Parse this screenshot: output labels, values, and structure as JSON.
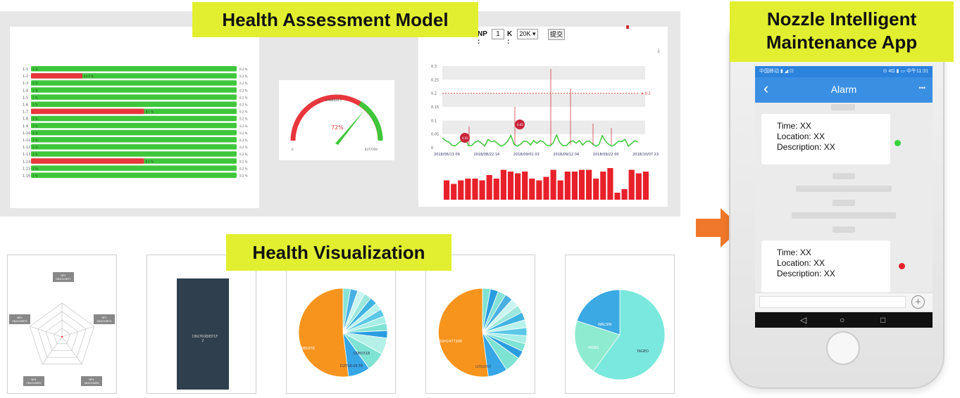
{
  "banners": {
    "assessment": "Health Assessment Model",
    "visualization": "Health Visualization",
    "app_line1": "Nozzle Intelligent",
    "app_line2": "Maintenance App"
  },
  "bar_panel": {
    "rows": [
      {
        "label": "1-1",
        "left": "1 %",
        "right": "0.2 %",
        "red": 0
      },
      {
        "label": "1-2",
        "left": "",
        "right": "0.2 %",
        "red": 0.25,
        "red_label": "23.5 %"
      },
      {
        "label": "1-3",
        "left": "1 %",
        "right": "0.2 %",
        "red": 0
      },
      {
        "label": "1-4",
        "left": "1 %",
        "right": "0.2 %",
        "red": 0
      },
      {
        "label": "1-5",
        "left": "1 %",
        "right": "0.2 %",
        "red": 0
      },
      {
        "label": "1-6",
        "left": "1 %",
        "right": "0.2 %",
        "red": 0
      },
      {
        "label": "1-7",
        "left": "",
        "right": "0.2 %",
        "red": 0.55,
        "red_label": "8.1 %"
      },
      {
        "label": "1-8",
        "left": "1 %",
        "right": "0.2 %",
        "red": 0
      },
      {
        "label": "1-9",
        "left": "1 %",
        "right": "0.2 %",
        "red": 0
      },
      {
        "label": "1-10",
        "left": "1 %",
        "right": "0.2 %",
        "red": 0
      },
      {
        "label": "1-11",
        "left": "1 %",
        "right": "0.2 %",
        "red": 0
      },
      {
        "label": "1-12",
        "left": "1 %",
        "right": "0.2 %",
        "red": 0
      },
      {
        "label": "1-13",
        "left": "1 %",
        "right": "0.2 %",
        "red": 0
      },
      {
        "label": "1-14",
        "left": "",
        "right": "0.2 %",
        "red": 0.55,
        "red_label": "8.1 %"
      },
      {
        "label": "1-15",
        "left": "1 %",
        "right": "0.2 %",
        "red": 0
      },
      {
        "label": "1-16",
        "left": "1 %",
        "right": "0.2 %",
        "red": 0
      }
    ]
  },
  "gauge": {
    "value_text": "72%",
    "value": 0.72,
    "top_text": "0.988629.5",
    "min_text": "0",
    "max_text": "6377359"
  },
  "trend": {
    "toolbar": {
      "np_label": "NP :",
      "np_value": "1",
      "k_label": "K :",
      "k_select": "20K ▾",
      "submit": "提交"
    },
    "yticks": [
      "0.3",
      "0.25",
      "0.2",
      "0.15",
      "0.1",
      "0.05",
      "0"
    ],
    "threshold_label": "0.2",
    "xticks": [
      "2018/06/13 09",
      "2018/08/22 14",
      "2018/09/01 03",
      "2018/09/12 04",
      "2018/09/22 00",
      "2018/10/07 23"
    ],
    "pin_labels": [
      "0.02",
      "0.05"
    ],
    "bars": [
      0.55,
      0.45,
      0.55,
      0.6,
      0.6,
      0.55,
      0.7,
      0.6,
      0.85,
      0.8,
      0.75,
      0.8,
      0.6,
      0.55,
      0.65,
      0.85,
      0.55,
      0.8,
      0.8,
      0.85,
      0.85,
      0.6,
      0.8,
      0.9,
      0.2,
      0.3,
      0.85,
      0.75,
      0.8
    ],
    "colors": {
      "bar": "#e8202a",
      "line": "#3ec73a",
      "threshold": "#d33"
    }
  },
  "viz": {
    "radar_labels": [
      "NP1\n0N4C00877",
      "NP2\n0N4C06874",
      "NP3\n0N4C06898",
      "NP4\n0N4C06899",
      "NP5\n0N4C06879"
    ],
    "dark_panel_text": "DNLT60BIEP1F\n2",
    "pie1_labels": [
      "D0810T8",
      "D0B0318",
      "D2T08-05-T6"
    ],
    "pie2_labels": [
      "L50H2477200",
      "L5T010T07"
    ],
    "pie3_labels": [
      "WALSIN",
      "HONG",
      "YAGEO"
    ]
  },
  "phone": {
    "status_left": "中国移动 ▮ ◢ ⊡",
    "status_right": "⊙ 4G ▮ ▭ 中午11:31",
    "title": "Alarm",
    "back_icon": "‹",
    "more_icon": "•••",
    "messages": [
      {
        "time": "Time: XX",
        "location": "Location: XX",
        "description": "Description: XX",
        "dot_color": "#37d43a"
      },
      {
        "time": "Time: XX",
        "location": "Location: XX",
        "description": "Description: XX",
        "dot_color": "#e8202a"
      }
    ],
    "nav": {
      "back": "◁",
      "home": "○",
      "recent": "□"
    },
    "add_icon": "+"
  },
  "arrow_color": "#f0782a"
}
